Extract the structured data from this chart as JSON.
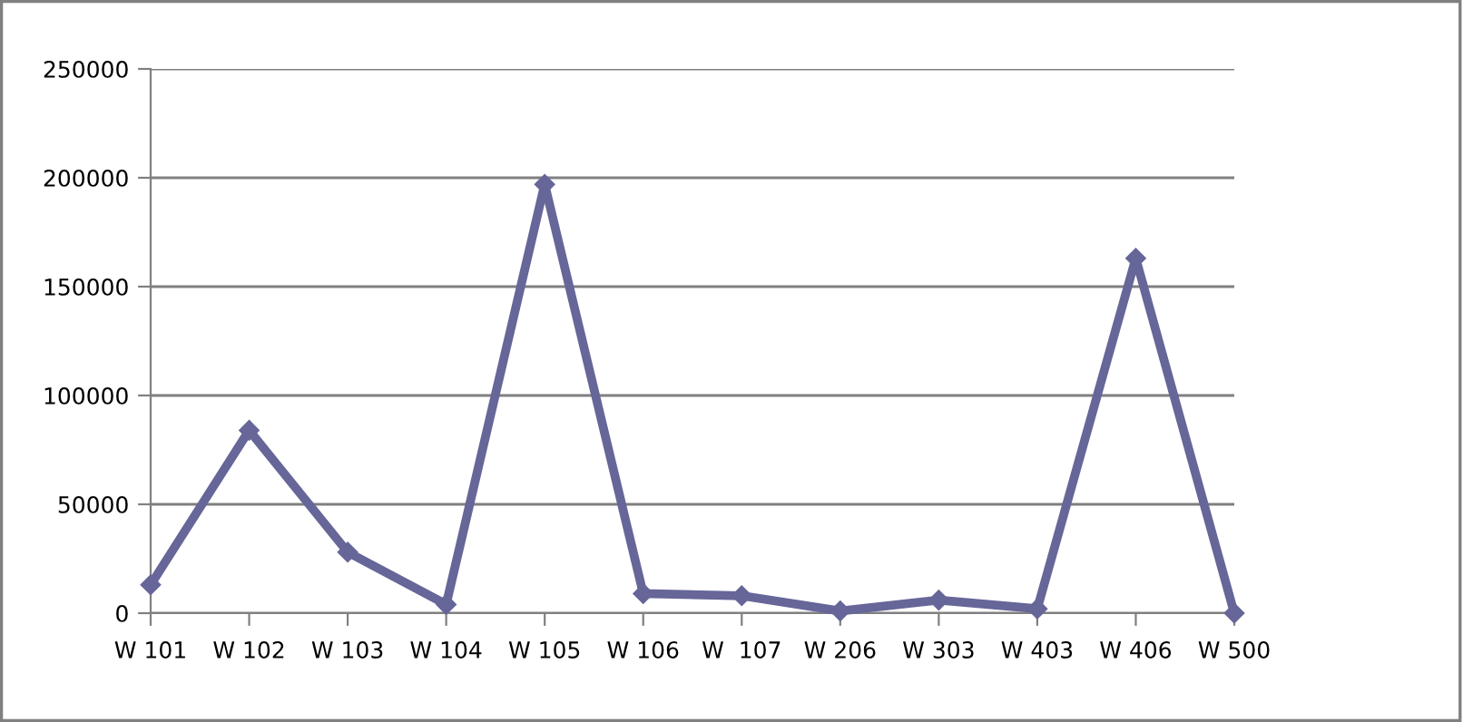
{
  "chart_data": {
    "type": "line",
    "categories": [
      "W 101",
      "W 102",
      "W 103",
      "W 104",
      "W 105",
      "W 106",
      "W  107",
      "W 206",
      "W 303",
      "W 403",
      "W 406",
      "W 500"
    ],
    "series": [
      {
        "color": "#666699",
        "values": [
          13000,
          84000,
          28000,
          4000,
          197000,
          9000,
          8000,
          1000,
          6000,
          2000,
          163000,
          0
        ]
      }
    ],
    "ylim": [
      0,
      250000
    ],
    "yticks": [
      0,
      50000,
      100000,
      150000,
      200000,
      250000
    ],
    "grid": "y",
    "marker": "diamond",
    "line_style": "solid",
    "legend": false
  }
}
